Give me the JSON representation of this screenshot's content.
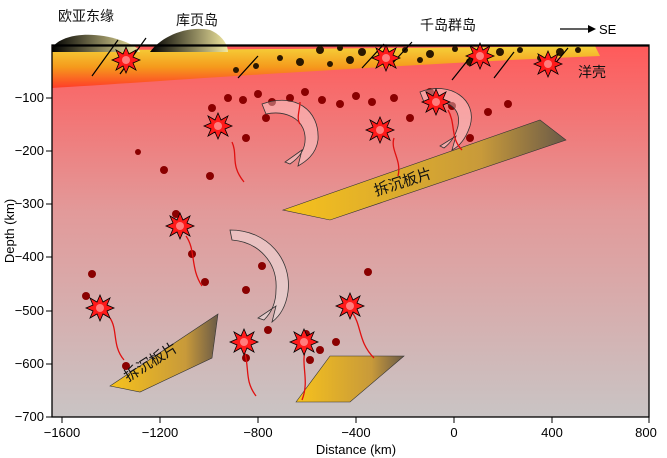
{
  "regions": {
    "eurasia": "欧亚东缘",
    "sakhalin": "库页岛",
    "kuril": "千岛群岛"
  },
  "direction": {
    "label": "SE"
  },
  "crust_label": "洋壳",
  "slab_labels": [
    "拆沉板片",
    "拆沉板片"
  ],
  "axes": {
    "x_label": "Distance (km)",
    "y_label": "Depth (km)",
    "x_ticks": [
      "−1600",
      "−1200",
      "−800",
      "−400",
      "0",
      "400",
      "800"
    ],
    "y_ticks": [
      "−100",
      "−200",
      "−300",
      "−400",
      "−500",
      "−600",
      "−700"
    ]
  },
  "colors": {
    "crust": "#f08c1a",
    "mantle_top": "#ff6a6a",
    "mantle_bottom": "#cfc4c4",
    "slab": "#f2c12e",
    "star": "#ff1010"
  },
  "icons": {
    "explosion": "red-star-icon",
    "flow": "curved-arrow-icon",
    "direction": "right-arrow-icon"
  }
}
